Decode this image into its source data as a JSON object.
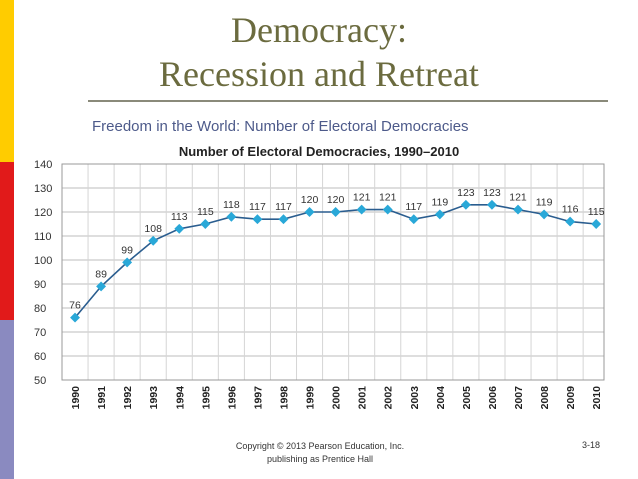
{
  "slide": {
    "title_line1": "Democracy:",
    "title_line2": "Recession and Retreat",
    "subtitle": "Freedom in the World: Number of Electoral Democracies",
    "footer_line1": "Copyright © 2013 Pearson Education, Inc.",
    "footer_line2": "publishing as Prentice Hall",
    "slide_number": "3-18"
  },
  "colors": {
    "accent_bars": [
      "#ffcc00",
      "#ffcc00",
      "#e11a1a",
      "#8a8ac0"
    ],
    "series_line": "#2a5d8f",
    "series_marker": "#29a8d8"
  },
  "chart_data": {
    "type": "line",
    "title": "Number of Electoral Democracies, 1990–2010",
    "xlabel": "",
    "ylabel": "",
    "categories": [
      "1990",
      "1991",
      "1992",
      "1993",
      "1994",
      "1995",
      "1996",
      "1997",
      "1998",
      "1999",
      "2000",
      "2001",
      "2002",
      "2003",
      "2004",
      "2005",
      "2006",
      "2007",
      "2008",
      "2009",
      "2010"
    ],
    "values": [
      76,
      89,
      99,
      108,
      113,
      115,
      118,
      117,
      117,
      120,
      120,
      121,
      121,
      117,
      119,
      123,
      123,
      121,
      119,
      116,
      115
    ],
    "ylim": [
      50,
      140
    ],
    "yticks": [
      50,
      60,
      70,
      80,
      90,
      100,
      110,
      120,
      130,
      140
    ],
    "grid": true,
    "legend": "none"
  }
}
